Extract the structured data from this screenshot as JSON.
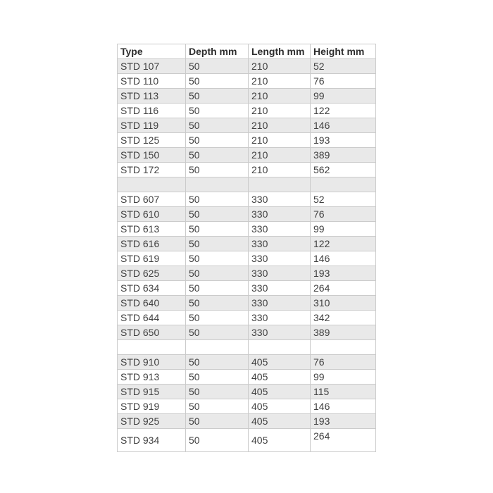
{
  "table": {
    "columns": [
      "Type",
      "Depth mm",
      "Length mm",
      "Height mm"
    ],
    "rows": [
      [
        "STD 107",
        "50",
        "210",
        "52"
      ],
      [
        "STD 110",
        "50",
        "210",
        "76"
      ],
      [
        "STD 113",
        "50",
        "210",
        "99"
      ],
      [
        "STD 116",
        "50",
        "210",
        "122"
      ],
      [
        "STD 119",
        "50",
        "210",
        "146"
      ],
      [
        "STD 125",
        "50",
        "210",
        "193"
      ],
      [
        "STD 150",
        "50",
        "210",
        "389"
      ],
      [
        "STD 172",
        "50",
        "210",
        "562"
      ],
      [
        "",
        "",
        "",
        ""
      ],
      [
        "STD 607",
        "50",
        "330",
        "52"
      ],
      [
        "STD 610",
        "50",
        "330",
        "76"
      ],
      [
        "STD 613",
        "50",
        "330",
        "99"
      ],
      [
        "STD 616",
        "50",
        "330",
        "122"
      ],
      [
        "STD 619",
        "50",
        "330",
        "146"
      ],
      [
        "STD 625",
        "50",
        "330",
        "193"
      ],
      [
        "STD 634",
        "50",
        "330",
        "264"
      ],
      [
        "STD 640",
        "50",
        "330",
        "310"
      ],
      [
        "STD 644",
        "50",
        "330",
        "342"
      ],
      [
        "STD 650",
        "50",
        "330",
        "389"
      ],
      [
        "",
        "",
        "",
        ""
      ],
      [
        "STD 910",
        "50",
        "405",
        "76"
      ],
      [
        "STD 913",
        "50",
        "405",
        "99"
      ],
      [
        "STD 915",
        "50",
        "405",
        "115"
      ],
      [
        "STD 919",
        "50",
        "405",
        "146"
      ],
      [
        "STD 925",
        "50",
        "405",
        "193"
      ],
      [
        "STD 934",
        "50",
        "405",
        "264"
      ]
    ],
    "colors": {
      "stripe": "#e9e9e9",
      "border": "#cbcbcb",
      "text": "#404040",
      "header_text": "#2d2d2d",
      "background": "#ffffff"
    }
  }
}
